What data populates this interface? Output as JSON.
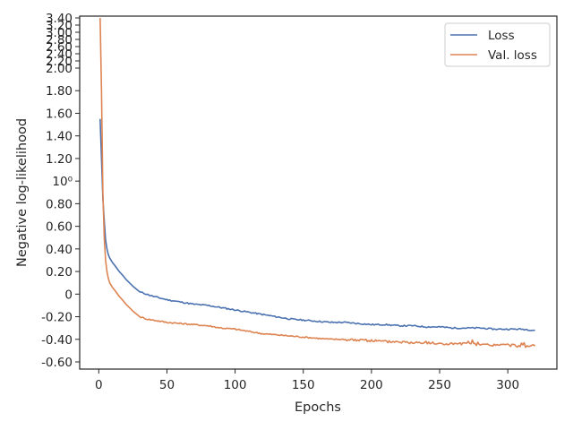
{
  "chart_data": {
    "type": "line",
    "xlabel": "Epochs",
    "ylabel": "Negative log-likelihood",
    "xlim": [
      -14,
      336
    ],
    "xticks": [
      0,
      50,
      100,
      150,
      200,
      250,
      300
    ],
    "xtick_labels": [
      "0",
      "50",
      "100",
      "150",
      "200",
      "250",
      "300"
    ],
    "yticks_linear": [
      -0.6,
      -0.4,
      -0.2,
      0.0,
      0.2,
      0.4,
      0.6,
      0.8,
      1.0,
      1.2,
      1.4,
      1.6,
      1.8,
      2.0
    ],
    "ytick_labels_linear": [
      "-0.60",
      "-0.40",
      "-0.20",
      "0",
      "0.20",
      "0.40",
      "0.60",
      "0.80",
      "10⁰",
      "1.20",
      "1.40",
      "1.60",
      "1.80",
      "2.00"
    ],
    "yticks_upper": [
      2.2,
      2.4,
      2.6,
      2.8,
      3.0,
      3.2,
      3.4
    ],
    "ytick_labels_upper": [
      "2.20",
      "2.40",
      "2.60",
      "2.80",
      "3.00",
      "3.20",
      "3.40"
    ],
    "legend": "top-right",
    "grid": false,
    "series": [
      {
        "name": "Loss",
        "color": "#4c72b0",
        "x": [
          1,
          2,
          3,
          4,
          5,
          6,
          7,
          8,
          10,
          12,
          15,
          18,
          20,
          25,
          30,
          35,
          40,
          50,
          60,
          70,
          80,
          90,
          100,
          110,
          120,
          130,
          140,
          150,
          160,
          170,
          180,
          190,
          200,
          210,
          220,
          230,
          240,
          250,
          260,
          270,
          280,
          290,
          300,
          310,
          320
        ],
        "y": [
          1.55,
          1.2,
          0.85,
          0.65,
          0.48,
          0.4,
          0.35,
          0.32,
          0.28,
          0.25,
          0.2,
          0.16,
          0.13,
          0.07,
          0.02,
          0.0,
          -0.02,
          -0.05,
          -0.07,
          -0.09,
          -0.1,
          -0.12,
          -0.14,
          -0.16,
          -0.18,
          -0.2,
          -0.22,
          -0.23,
          -0.24,
          -0.25,
          -0.25,
          -0.26,
          -0.27,
          -0.27,
          -0.28,
          -0.28,
          -0.29,
          -0.29,
          -0.3,
          -0.3,
          -0.3,
          -0.31,
          -0.31,
          -0.31,
          -0.32
        ]
      },
      {
        "name": "Val. loss",
        "color": "#dd8452",
        "x": [
          1,
          2,
          3,
          4,
          5,
          6,
          7,
          8,
          10,
          12,
          15,
          18,
          20,
          25,
          30,
          35,
          40,
          50,
          60,
          70,
          80,
          90,
          100,
          110,
          120,
          130,
          140,
          150,
          160,
          170,
          180,
          190,
          200,
          210,
          220,
          230,
          240,
          250,
          260,
          270,
          280,
          290,
          300,
          310,
          320
        ],
        "y": [
          3.4,
          1.8,
          0.9,
          0.5,
          0.3,
          0.2,
          0.14,
          0.1,
          0.06,
          0.03,
          -0.02,
          -0.06,
          -0.09,
          -0.15,
          -0.2,
          -0.22,
          -0.23,
          -0.25,
          -0.26,
          -0.27,
          -0.28,
          -0.3,
          -0.31,
          -0.33,
          -0.35,
          -0.36,
          -0.37,
          -0.38,
          -0.39,
          -0.4,
          -0.4,
          -0.41,
          -0.41,
          -0.42,
          -0.42,
          -0.43,
          -0.43,
          -0.44,
          -0.44,
          -0.44,
          -0.45,
          -0.45,
          -0.45,
          -0.46,
          -0.46
        ]
      }
    ]
  }
}
